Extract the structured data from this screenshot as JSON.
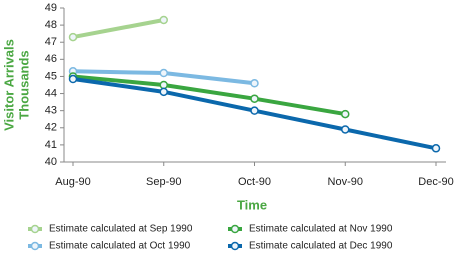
{
  "chart_data": {
    "type": "line",
    "ylabel": [
      "Visitor Arrivals",
      "Thousands"
    ],
    "xlabel": "Time",
    "categories": [
      "Aug-90",
      "Sep-90",
      "Oct-90",
      "Nov-90",
      "Dec-90"
    ],
    "series": [
      {
        "name": "Estimate calculated at Sep 1990",
        "color": "#a6d38f",
        "values": [
          47.3,
          48.3,
          null,
          null,
          null
        ]
      },
      {
        "name": "Estimate calculated at Oct 1990",
        "color": "#7cb9e2",
        "values": [
          45.3,
          45.2,
          44.6,
          null,
          null
        ]
      },
      {
        "name": "Estimate calculated at Nov 1990",
        "color": "#3aa640",
        "values": [
          45.0,
          44.5,
          43.7,
          42.8,
          null
        ]
      },
      {
        "name": "Estimate calculated at Dec 1990",
        "color": "#0b68ac",
        "values": [
          44.85,
          44.1,
          43.0,
          41.9,
          40.8
        ]
      }
    ],
    "ylim": [
      40,
      49
    ],
    "yticks": [
      40,
      41,
      42,
      43,
      44,
      45,
      46,
      47,
      48,
      49
    ]
  }
}
